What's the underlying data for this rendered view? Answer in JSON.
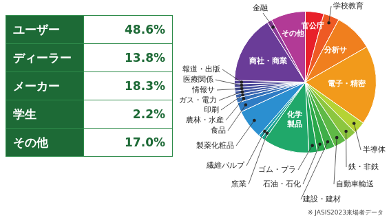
{
  "table": {
    "rows": [
      [
        "ユーザー",
        "48.6%"
      ],
      [
        "ディーラー",
        "13.8%"
      ],
      [
        "メーカー",
        "18.3%"
      ],
      [
        "学生",
        "2.2%"
      ],
      [
        "その他",
        "17.0%"
      ]
    ]
  },
  "chart_data": {
    "type": "pie",
    "categories": [
      "官公庁",
      "学校教育",
      "分析サ",
      "電子・精密",
      "半導体",
      "鉄・非鉄",
      "自動車輸送",
      "建設・建材",
      "石油・石化",
      "ゴム・プラ",
      "化学製品",
      "窯業",
      "繊維パルプ",
      "製薬化粧品",
      "食品",
      "農林・水産",
      "印刷",
      "ガス・電力",
      "情報サ",
      "医療関係",
      "報道・出版",
      "商社・商業",
      "金融",
      "その他"
    ],
    "values": [
      4.2,
      3.6,
      8.9,
      18.1,
      2.8,
      2.8,
      2.8,
      2.2,
      1.9,
      1.9,
      10.6,
      0.8,
      0.8,
      6.7,
      2.2,
      1.1,
      0.8,
      0.8,
      0.8,
      0.8,
      0.8,
      15.6,
      1.1,
      7.9
    ],
    "colors": [
      "#e8202a",
      "#ee5a24",
      "#f07f1e",
      "#f29a1b",
      "#b5d334",
      "#8cc63f",
      "#5fb946",
      "#3fae49",
      "#2aa84a",
      "#1da35a",
      "#20a86a",
      "#1aa58a",
      "#1f9fb0",
      "#2b8fd0",
      "#2f7cc4",
      "#3470b8",
      "#3a62ad",
      "#3f58a5",
      "#444f9e",
      "#4a4899",
      "#524396",
      "#6a3c98",
      "#8b3a99",
      "#b23a96"
    ]
  },
  "note": "※ JASIS2023来場者データ"
}
